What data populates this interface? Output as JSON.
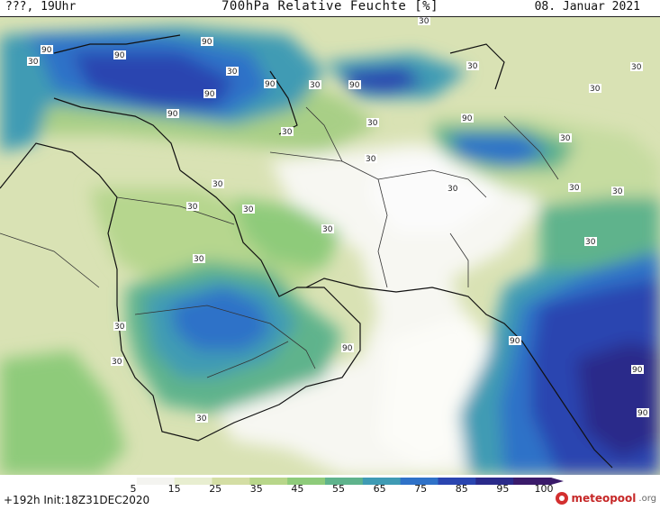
{
  "header": {
    "left_label": "???, 19Uhr",
    "title": "700hPa Relative Feuchte [%]",
    "date": "08. Januar 2021"
  },
  "map": {
    "contour_labels": [
      "90",
      "90",
      "90",
      "90",
      "90",
      "90",
      "90",
      "90",
      "30",
      "30",
      "30",
      "30",
      "30",
      "30",
      "30",
      "30",
      "30",
      "30",
      "30",
      "30",
      "30",
      "30",
      "30",
      "30",
      "30",
      "30",
      "30",
      "30",
      "30",
      "30",
      "90",
      "90",
      "30",
      "90",
      "90"
    ]
  },
  "legend": {
    "ticks": [
      "5",
      "15",
      "25",
      "35",
      "45",
      "55",
      "65",
      "75",
      "85",
      "95",
      "100"
    ],
    "colors": [
      "#ffffff",
      "#f4f4f0",
      "#e8eed0",
      "#d4dea4",
      "#b8d68a",
      "#8ecb7a",
      "#5fb38c",
      "#3f9bb4",
      "#2f72c8",
      "#2a45b0",
      "#2a2a8a",
      "#3a1a6a"
    ]
  },
  "footer": {
    "run_info": "+192h Init:18Z31DEC2020",
    "logo_main": "meteopool",
    "logo_tld": ".org"
  }
}
